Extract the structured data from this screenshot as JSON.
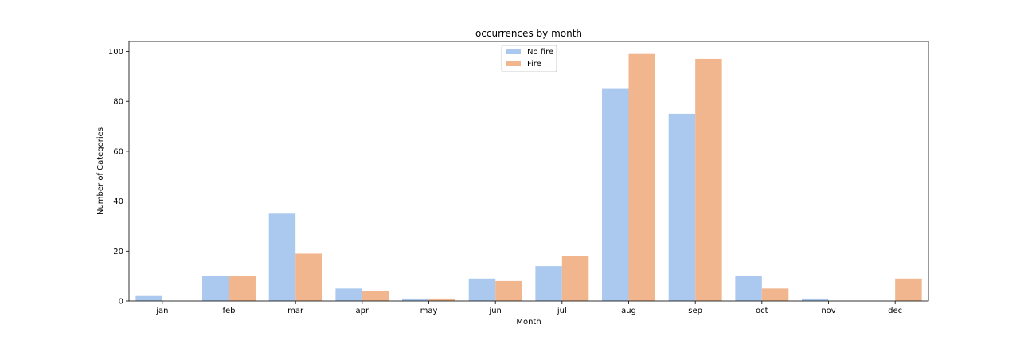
{
  "chart_data": {
    "type": "bar",
    "title": "occurrences by month",
    "xlabel": "Month",
    "ylabel": "Number of Categories",
    "categories": [
      "jan",
      "feb",
      "mar",
      "apr",
      "may",
      "jun",
      "jul",
      "aug",
      "sep",
      "oct",
      "nov",
      "dec"
    ],
    "series": [
      {
        "name": "No fire",
        "color": "#abc9ee",
        "values": [
          2,
          10,
          35,
          5,
          1,
          9,
          14,
          85,
          75,
          10,
          1,
          0
        ]
      },
      {
        "name": "Fire",
        "color": "#f1b68e",
        "values": [
          0,
          10,
          19,
          4,
          1,
          8,
          18,
          99,
          97,
          5,
          0,
          9
        ]
      }
    ],
    "ylim": [
      0,
      104
    ],
    "yticks": [
      0,
      20,
      40,
      60,
      80,
      100
    ],
    "legend_position": "top-center",
    "grid": false
  }
}
